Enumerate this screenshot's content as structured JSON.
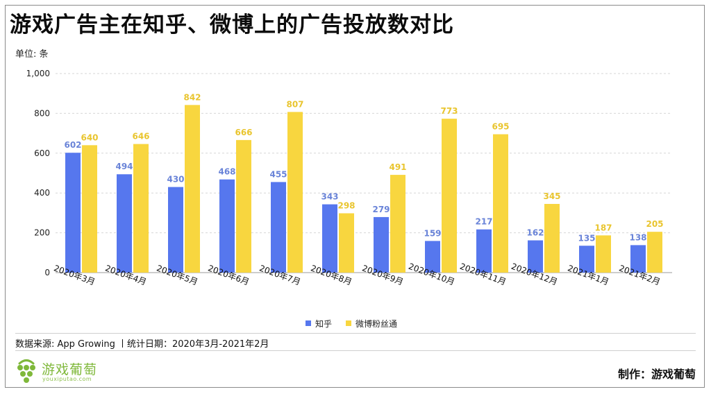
{
  "header": {
    "title": "游戏广告主在知乎、微博上的广告投放数对比",
    "unit": "单位: 条"
  },
  "colors": {
    "zhihu": "#5677ee",
    "weibo": "#f8d63f",
    "zhihu_label": "#6a84d8",
    "weibo_label": "#e9c52f",
    "logo_green": "#7fb83a"
  },
  "chart_data": {
    "type": "bar",
    "title": "游戏广告主在知乎、微博上的广告投放数对比",
    "xlabel": "",
    "ylabel": "单位: 条",
    "ylim": [
      0,
      1000
    ],
    "yticks": [
      0,
      200,
      400,
      600,
      800,
      1000
    ],
    "ytick_labels": [
      "0",
      "200",
      "400",
      "600",
      "800",
      "1,000"
    ],
    "grid": true,
    "legend_position": "bottom",
    "categories": [
      "2020年3月",
      "2020年4月",
      "2020年5月",
      "2020年6月",
      "2020年7月",
      "2020年8月",
      "2020年9月",
      "2020年10月",
      "2020年11月",
      "2020年12月",
      "2021年1月",
      "2021年2月"
    ],
    "series": [
      {
        "name": "知乎",
        "values": [
          602,
          494,
          430,
          468,
          455,
          343,
          279,
          159,
          217,
          162,
          135,
          138
        ]
      },
      {
        "name": "微博粉丝通",
        "values": [
          640,
          646,
          842,
          666,
          807,
          298,
          491,
          773,
          695,
          345,
          187,
          205
        ]
      }
    ]
  },
  "footer": {
    "source": "数据来源: App Growing 丨统计日期：2020年3月-2021年2月",
    "logo_cn": "游戏葡萄",
    "logo_en": "youxiputao.com",
    "credit": "制作：游戏葡萄"
  }
}
